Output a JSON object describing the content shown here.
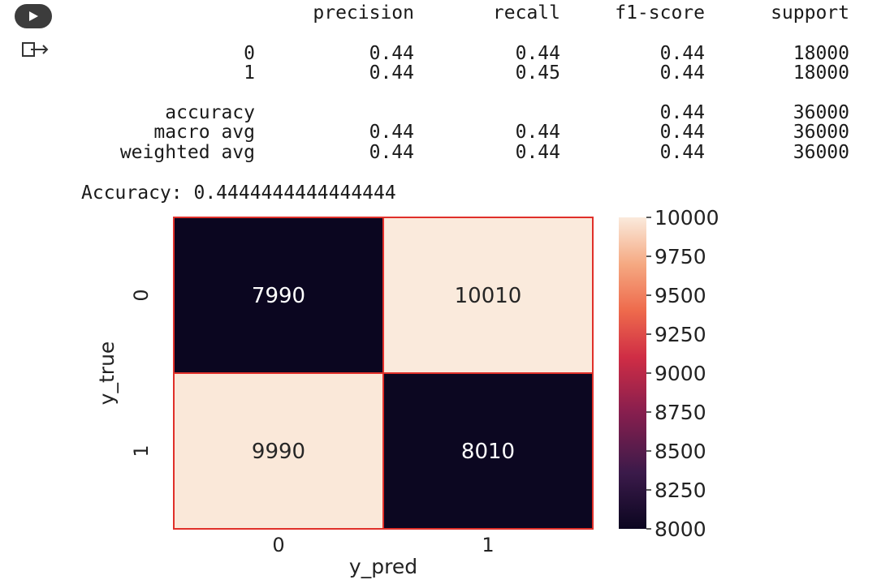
{
  "cell_controls": {
    "run_icon": "play-icon",
    "output_icon": "output-arrow-icon"
  },
  "report": {
    "headers": [
      "precision",
      "recall",
      "f1-score",
      "support"
    ],
    "rows": [
      {
        "label": "0",
        "precision": "0.44",
        "recall": "0.44",
        "f1": "0.44",
        "support": "18000"
      },
      {
        "label": "1",
        "precision": "0.44",
        "recall": "0.45",
        "f1": "0.44",
        "support": "18000"
      },
      {
        "label": "accuracy",
        "precision": "",
        "recall": "",
        "f1": "0.44",
        "support": "36000"
      },
      {
        "label": "macro avg",
        "precision": "0.44",
        "recall": "0.44",
        "f1": "0.44",
        "support": "36000"
      },
      {
        "label": "weighted avg",
        "precision": "0.44",
        "recall": "0.44",
        "f1": "0.44",
        "support": "36000"
      }
    ]
  },
  "accuracy_line": "Accuracy: 0.4444444444444444",
  "chart_data": {
    "type": "heatmap",
    "xlabel": "y_pred",
    "ylabel": "y_true",
    "x_ticks": [
      "0",
      "1"
    ],
    "y_ticks": [
      "0",
      "1"
    ],
    "values": [
      [
        7990,
        10010
      ],
      [
        9990,
        8010
      ]
    ],
    "colorbar": {
      "min": 8000,
      "max": 10000,
      "ticks": [
        "10000",
        "9750",
        "9500",
        "9250",
        "9000",
        "8750",
        "8500",
        "8250",
        "8000"
      ]
    },
    "cell_border_color": "#e0302a",
    "colors": {
      "low": "#0d0820",
      "high": "#faeadc"
    }
  }
}
